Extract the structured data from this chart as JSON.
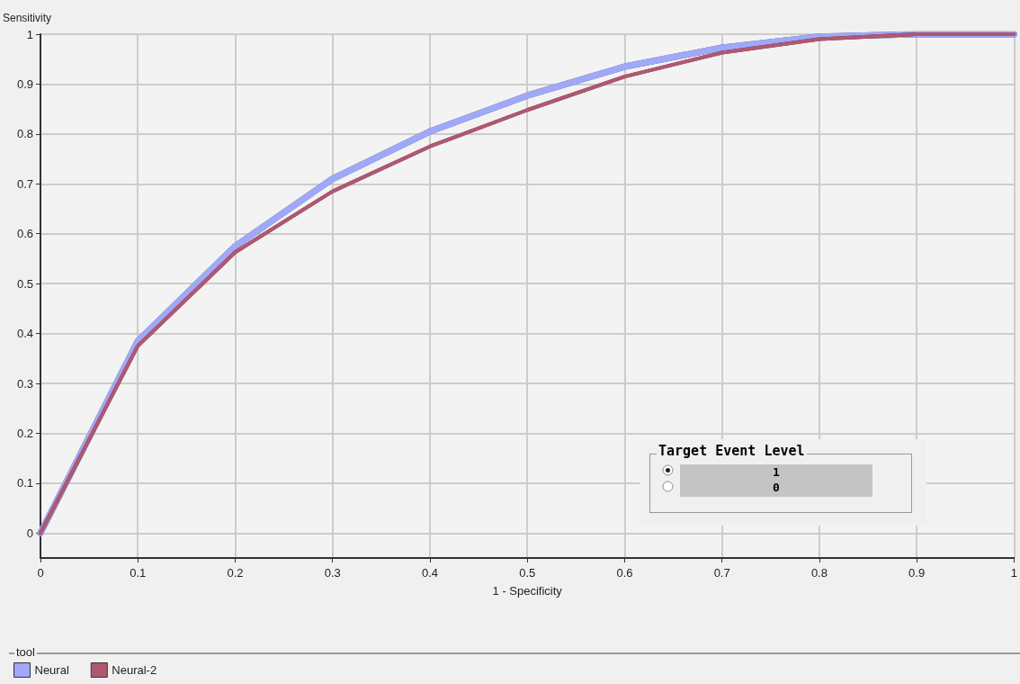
{
  "chart_data": {
    "type": "line",
    "xlabel": "1 - Specificity",
    "ylabel": "Sensitivity",
    "legend_title": "tool",
    "x": [
      0,
      0.1,
      0.2,
      0.3,
      0.4,
      0.5,
      0.6,
      0.7,
      0.8,
      0.9,
      1
    ],
    "series": [
      {
        "name": "Neural",
        "color": "#a0a8f8",
        "values": [
          0,
          0.385,
          0.575,
          0.71,
          0.805,
          0.877,
          0.935,
          0.973,
          0.995,
          1,
          1
        ]
      },
      {
        "name": "Neural-2",
        "color": "#b05870",
        "values": [
          0,
          0.375,
          0.563,
          0.685,
          0.775,
          0.848,
          0.915,
          0.963,
          0.99,
          1,
          1
        ]
      }
    ],
    "xlim": [
      0,
      1
    ],
    "xticks": [
      0,
      0.1,
      0.2,
      0.3,
      0.4,
      0.5,
      0.6,
      0.7,
      0.8,
      0.9,
      1
    ],
    "ylim": [
      -0.05,
      1
    ],
    "yticks": [
      0,
      0.1,
      0.2,
      0.3,
      0.4,
      0.5,
      0.6,
      0.7,
      0.8,
      0.9,
      1
    ],
    "grid": true,
    "legend": "bottom left",
    "marker": "none",
    "line_style": "solid",
    "annotations": [
      "Target Event Level",
      "1",
      "0"
    ]
  }
}
